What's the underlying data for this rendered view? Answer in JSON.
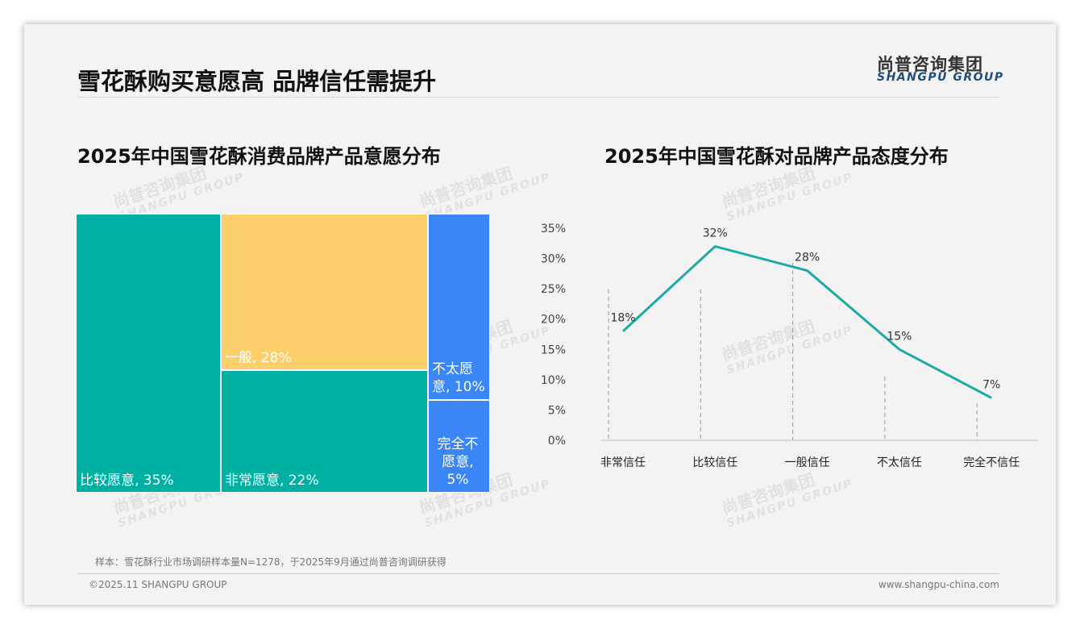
{
  "header": {
    "title": "雪花酥购买意愿高 品牌信任需提升",
    "logo_cn": "尚普咨询集团",
    "logo_en": "SHANGPU GROUP"
  },
  "watermark": {
    "cn": "尚普咨询集团",
    "en": "SHANGPU GROUP"
  },
  "chart_data": [
    {
      "type": "treemap",
      "title": "2025年中国雪花酥消费品牌产品意愿分布",
      "items": [
        {
          "label": "比较愿意",
          "value": 35,
          "text": "比较愿意, 35%",
          "color": "#00b0a3"
        },
        {
          "label": "一般",
          "value": 28,
          "text": "一般, 28%",
          "color": "#fdcf6a"
        },
        {
          "label": "非常愿意",
          "value": 22,
          "text": "非常愿意, 22%",
          "color": "#00b0a3"
        },
        {
          "label": "不太愿意",
          "value": 10,
          "text": "不太愿意, 10%",
          "color": "#3a86f7"
        },
        {
          "label": "完全不愿意",
          "value": 5,
          "text": "完全不愿意, 5%",
          "color": "#3a86f7"
        }
      ]
    },
    {
      "type": "line",
      "title": "2025年中国雪花酥对品牌产品态度分布",
      "categories": [
        "非常信任",
        "比较信任",
        "一般信任",
        "不太信任",
        "完全不信任"
      ],
      "values": [
        18,
        32,
        28,
        15,
        7
      ],
      "labels": [
        "18%",
        "32%",
        "28%",
        "15%",
        "7%"
      ],
      "ylim": [
        0,
        35
      ],
      "yticks": [
        "0%",
        "5%",
        "10%",
        "15%",
        "20%",
        "25%",
        "30%",
        "35%"
      ],
      "color": "#1aaba3"
    }
  ],
  "footer": {
    "note": "样本：雪花酥行业市场调研样本量N=1278，于2025年9月通过尚普咨询调研获得",
    "copyright": "©2025.11 SHANGPU GROUP",
    "website": "www.shangpu-china.com"
  }
}
